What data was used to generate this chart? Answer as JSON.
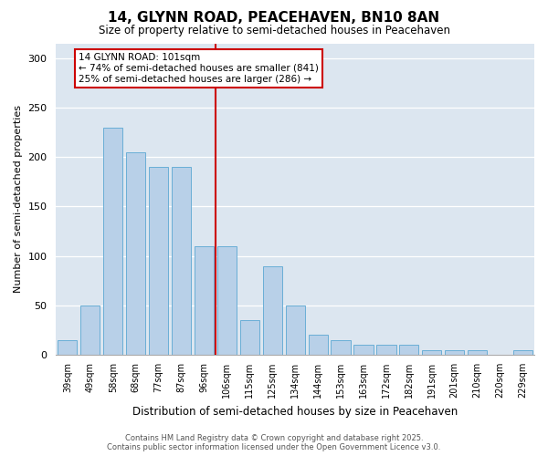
{
  "title": "14, GLYNN ROAD, PEACEHAVEN, BN10 8AN",
  "subtitle": "Size of property relative to semi-detached houses in Peacehaven",
  "xlabel": "Distribution of semi-detached houses by size in Peacehaven",
  "ylabel": "Number of semi-detached properties",
  "categories": [
    "39sqm",
    "49sqm",
    "58sqm",
    "68sqm",
    "77sqm",
    "87sqm",
    "96sqm",
    "106sqm",
    "115sqm",
    "125sqm",
    "134sqm",
    "144sqm",
    "153sqm",
    "163sqm",
    "172sqm",
    "182sqm",
    "191sqm",
    "201sqm",
    "210sqm",
    "220sqm",
    "229sqm"
  ],
  "values": [
    15,
    50,
    230,
    205,
    190,
    190,
    110,
    110,
    35,
    90,
    50,
    20,
    15,
    10,
    10,
    10,
    5,
    5,
    5,
    0,
    5
  ],
  "bar_color": "#b8d0e8",
  "bar_edgecolor": "#6aaed6",
  "bar_linewidth": 0.7,
  "vline_color": "#cc0000",
  "annotation_title": "14 GLYNN ROAD: 101sqm",
  "annotation_line1": "← 74% of semi-detached houses are smaller (841)",
  "annotation_line2": "25% of semi-detached houses are larger (286) →",
  "annotation_box_color": "#cc0000",
  "ylim": [
    0,
    315
  ],
  "yticks": [
    0,
    50,
    100,
    150,
    200,
    250,
    300
  ],
  "plot_bg_color": "#dce6f0",
  "fig_bg_color": "#ffffff",
  "footer_line1": "Contains HM Land Registry data © Crown copyright and database right 2025.",
  "footer_line2": "Contains public sector information licensed under the Open Government Licence v3.0."
}
